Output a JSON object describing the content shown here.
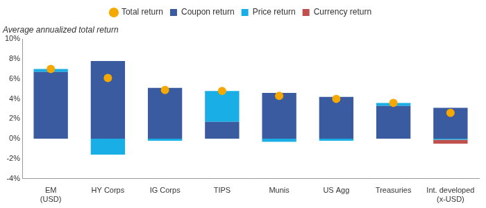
{
  "chart_data": {
    "type": "bar",
    "title": "Average annualized total return",
    "categories": [
      "EM (USD)",
      "HY Corps",
      "IG Corps",
      "TIPS",
      "Munis",
      "US Agg",
      "Treasuries",
      "Int. developed (x-USD)"
    ],
    "series": [
      {
        "name": "Coupon return",
        "type": "bar",
        "color": "#3a5ba0",
        "values": [
          6.7,
          7.8,
          5.1,
          1.7,
          4.6,
          4.2,
          3.3,
          3.1
        ]
      },
      {
        "name": "Price return",
        "type": "bar",
        "color": "#19aee6",
        "values": [
          0.3,
          -1.6,
          -0.2,
          3.1,
          -0.3,
          -0.2,
          0.3,
          -0.1
        ]
      },
      {
        "name": "Currency return",
        "type": "bar",
        "color": "#c0504d",
        "values": [
          0,
          0,
          0,
          0,
          0,
          0,
          0,
          -0.4
        ]
      },
      {
        "name": "Total return",
        "type": "scatter",
        "marker": "circle",
        "color": "#f5a800",
        "values": [
          7.0,
          6.1,
          4.9,
          4.8,
          4.3,
          4.0,
          3.6,
          2.6
        ]
      }
    ],
    "ylim": [
      -4,
      10
    ],
    "yticks": [
      {
        "value": -4,
        "label": "-4%"
      },
      {
        "value": -2,
        "label": "-2%"
      },
      {
        "value": 0,
        "label": "0%"
      },
      {
        "value": 2,
        "label": "2%"
      },
      {
        "value": 4,
        "label": "4%"
      },
      {
        "value": 6,
        "label": "6%"
      },
      {
        "value": 8,
        "label": "8%"
      },
      {
        "value": 10,
        "label": "10%"
      }
    ],
    "grid": false,
    "legend": "top",
    "stacked": true
  }
}
